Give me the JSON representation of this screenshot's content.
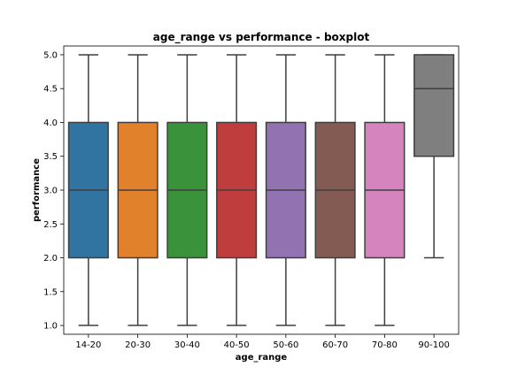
{
  "chart_data": {
    "type": "boxplot",
    "title": "age_range vs performance - boxplot",
    "xlabel": "age_range",
    "ylabel": "performance",
    "ylim": [
      0.87,
      5.13
    ],
    "yticks": [
      "1.0",
      "1.5",
      "2.0",
      "2.5",
      "3.0",
      "3.5",
      "4.0",
      "4.5",
      "5.0"
    ],
    "categories": [
      "14-20",
      "20-30",
      "30-40",
      "40-50",
      "50-60",
      "60-70",
      "70-80",
      "90-100"
    ],
    "boxes": [
      {
        "category": "14-20",
        "whislo": 1.0,
        "q1": 2.0,
        "med": 3.0,
        "q3": 4.0,
        "whishi": 5.0,
        "color": "#3274a1"
      },
      {
        "category": "20-30",
        "whislo": 1.0,
        "q1": 2.0,
        "med": 3.0,
        "q3": 4.0,
        "whishi": 5.0,
        "color": "#e1812c"
      },
      {
        "category": "30-40",
        "whislo": 1.0,
        "q1": 2.0,
        "med": 3.0,
        "q3": 4.0,
        "whishi": 5.0,
        "color": "#3a923a"
      },
      {
        "category": "40-50",
        "whislo": 1.0,
        "q1": 2.0,
        "med": 3.0,
        "q3": 4.0,
        "whishi": 5.0,
        "color": "#c03d3e"
      },
      {
        "category": "50-60",
        "whislo": 1.0,
        "q1": 2.0,
        "med": 3.0,
        "q3": 4.0,
        "whishi": 5.0,
        "color": "#9372b2"
      },
      {
        "category": "60-70",
        "whislo": 1.0,
        "q1": 2.0,
        "med": 3.0,
        "q3": 4.0,
        "whishi": 5.0,
        "color": "#845b53"
      },
      {
        "category": "70-80",
        "whislo": 1.0,
        "q1": 2.0,
        "med": 3.0,
        "q3": 4.0,
        "whishi": 5.0,
        "color": "#d684bd"
      },
      {
        "category": "90-100",
        "whislo": 2.0,
        "q1": 3.5,
        "med": 4.5,
        "q3": 5.0,
        "whishi": 5.0,
        "color": "#7f7f7f"
      }
    ],
    "grid": false,
    "line_color": "#3f3f3f"
  }
}
